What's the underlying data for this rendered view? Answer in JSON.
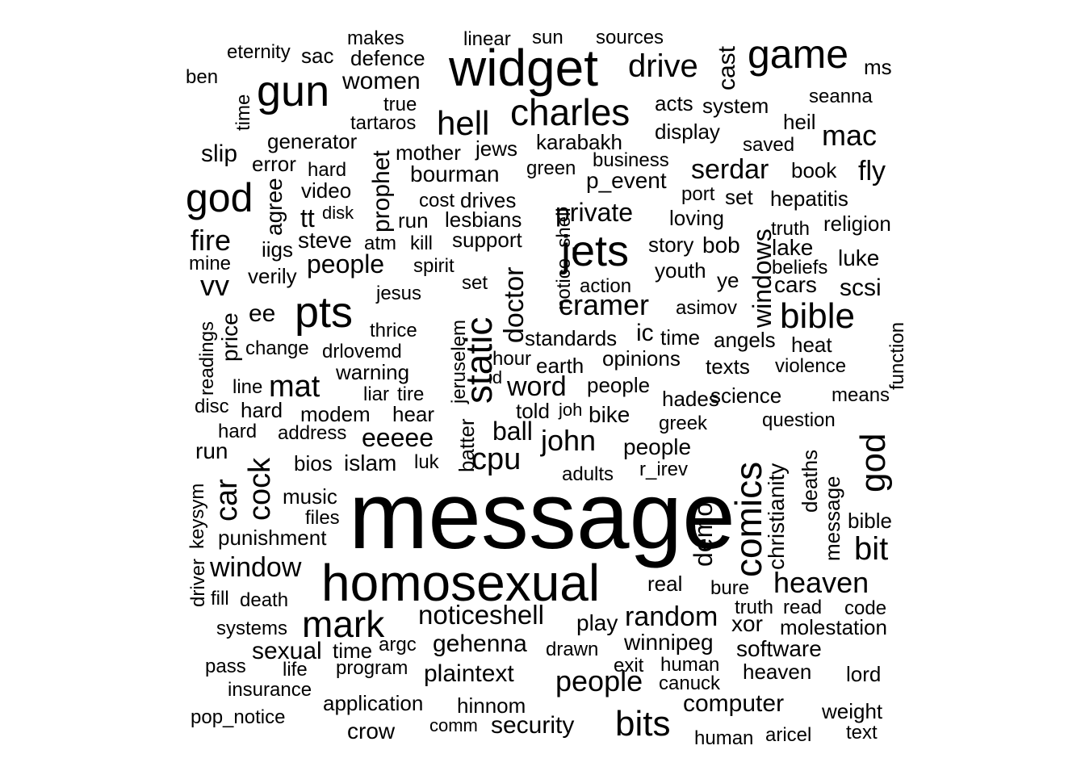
{
  "words": [
    "message",
    "homosexual",
    "widget",
    "comics",
    "pts",
    "jets",
    "static",
    "gun",
    "game",
    "charles",
    "god",
    "bible",
    "god",
    "mark",
    "hell",
    "cpu",
    "cramer",
    "bits",
    "heaven",
    "bit",
    "mat",
    "john",
    "window",
    "fire",
    "drive",
    "mac",
    "serdar",
    "people",
    "private",
    "word",
    "vv",
    "random",
    "noticeshell",
    "people",
    "doctor",
    "gehenna",
    "women",
    "car",
    "cock",
    "fly",
    "plaintext",
    "ball",
    "eeeee",
    "windows",
    "demo",
    "winnipeg",
    "computer",
    "security",
    "sexual",
    "christianity",
    "islam",
    "scsi",
    "software",
    "luke",
    "lake",
    "cars",
    "molestation",
    "ic",
    "slip",
    "ee",
    "xor",
    "bourman",
    "mother",
    "play",
    "generator",
    "steve",
    "sac",
    "defence",
    "makes",
    "linear",
    "sun",
    "sources",
    "eternity",
    "ben",
    "time",
    "true",
    "tartaros",
    "acts",
    "system",
    "display",
    "cast",
    "ms",
    "seanna",
    "heil",
    "saved",
    "book",
    "karabakh",
    "jews",
    "business",
    "green",
    "p_event",
    "hard",
    "error",
    "prophet",
    "agree",
    "video",
    "cost",
    "drives",
    "tt",
    "disk",
    "run",
    "lesbians",
    "loving",
    "port",
    "set",
    "hepatitis",
    "truth",
    "religion",
    "iigs",
    "atm",
    "kill",
    "support",
    "notice_shell",
    "story",
    "bob",
    "mine",
    "verily",
    "spirit",
    "set",
    "youth",
    "beliefs",
    "ye",
    "action",
    "asimov",
    "jesus",
    "price",
    "readings",
    "thrice",
    "jeruselem",
    "standards",
    "time",
    "angels",
    "heat",
    "function",
    "change",
    "drlovemd",
    "hour",
    "earth",
    "opinions",
    "texts",
    "violence",
    "warning",
    "id",
    "line",
    "liar",
    "tire",
    "people",
    "hades",
    "science",
    "means",
    "disc",
    "hard",
    "modem",
    "hear",
    "told",
    "joh",
    "bike",
    "greek",
    "question",
    "hard",
    "address",
    "batter",
    "people",
    "run",
    "bios",
    "luk",
    "adults",
    "r_irev",
    "deaths",
    "message",
    "keysym",
    "music",
    "files",
    "bible",
    "punishment",
    "driver",
    "fill",
    "death",
    "real",
    "bure",
    "truth",
    "read",
    "code",
    "systems",
    "time",
    "argc",
    "drawn",
    "pass",
    "life",
    "program",
    "exit",
    "human",
    "heaven",
    "lord",
    "insurance",
    "canuck",
    "application",
    "hinnom",
    "pop_notice",
    "crow",
    "comm",
    "weight",
    "human",
    "aricel",
    "text"
  ]
}
